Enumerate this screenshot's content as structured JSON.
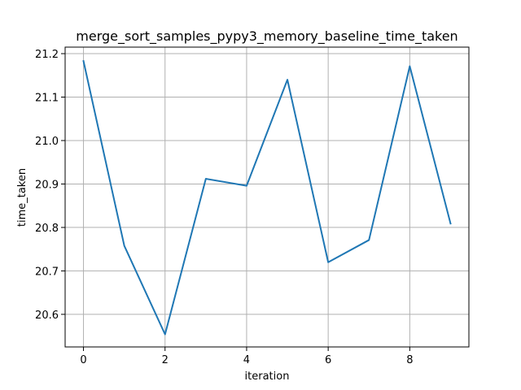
{
  "chart_data": {
    "type": "line",
    "title": "merge_sort_samples_pypy3_memory_baseline_time_taken",
    "xlabel": "iteration",
    "ylabel": "time_taken",
    "grid": true,
    "xlim": [
      -0.45,
      9.45
    ],
    "ylim": [
      20.525,
      21.215
    ],
    "x_ticks": [
      0,
      2,
      4,
      6,
      8
    ],
    "x_tick_labels": [
      "0",
      "2",
      "4",
      "6",
      "8"
    ],
    "y_ticks": [
      20.6,
      20.7,
      20.8,
      20.9,
      21.0,
      21.1,
      21.2
    ],
    "y_tick_labels": [
      "20.6",
      "20.7",
      "20.8",
      "20.9",
      "21.0",
      "21.1",
      "21.2"
    ],
    "line_color": "#1f77b4",
    "grid_color": "#b0b0b0",
    "series": [
      {
        "x": [
          0,
          1,
          2,
          3,
          4,
          5,
          6,
          7,
          8,
          9
        ],
        "values": [
          21.183,
          20.758,
          20.554,
          20.912,
          20.896,
          21.14,
          20.72,
          20.771,
          21.171,
          20.809
        ]
      }
    ]
  }
}
